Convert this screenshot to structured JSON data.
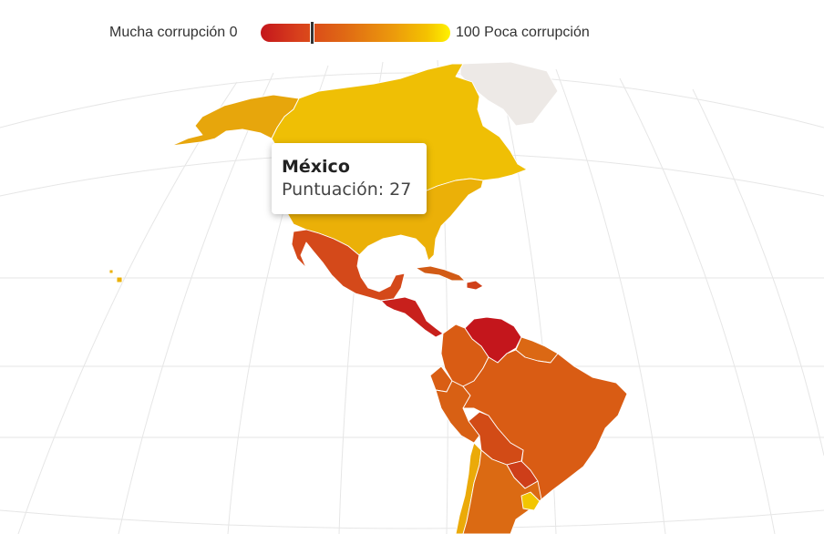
{
  "legend": {
    "low_label": "Mucha corrupción 0",
    "high_label": "100 Poca corrupción",
    "scale_min": 0,
    "scale_max": 100,
    "highlighted_score": 27,
    "colors": [
      "#c4161c",
      "#d8401c",
      "#e06a14",
      "#ec9a0c",
      "#f4c300",
      "#fff200"
    ]
  },
  "tooltip": {
    "country": "México",
    "score_text": "Puntuación: 27",
    "score": 27
  },
  "map": {
    "no_data_color": "#ede9e6",
    "gridline_color": "#e3e3e3",
    "regions": [
      {
        "id": "alaska",
        "color": "#e7a60c"
      },
      {
        "id": "canada",
        "color": "#efbf05"
      },
      {
        "id": "usa",
        "color": "#ebb008"
      },
      {
        "id": "greenland",
        "color": "#ede9e6"
      },
      {
        "id": "mexico",
        "color": "#d4491a"
      },
      {
        "id": "central-america",
        "color": "#c8201c"
      },
      {
        "id": "cuba",
        "color": "#d25b16"
      },
      {
        "id": "hispaniola",
        "color": "#d0401a"
      },
      {
        "id": "colombia",
        "color": "#d95c14"
      },
      {
        "id": "venezuela",
        "color": "#c4161c"
      },
      {
        "id": "guyanas",
        "color": "#db6814"
      },
      {
        "id": "ecuador",
        "color": "#d95e14"
      },
      {
        "id": "peru",
        "color": "#d86014"
      },
      {
        "id": "brazil",
        "color": "#d95c14"
      },
      {
        "id": "bolivia",
        "color": "#d24b16"
      },
      {
        "id": "paraguay",
        "color": "#ce3e19"
      },
      {
        "id": "chile",
        "color": "#ebaa09"
      },
      {
        "id": "argentina",
        "color": "#db6a13"
      },
      {
        "id": "uruguay",
        "color": "#f2c601"
      }
    ]
  }
}
